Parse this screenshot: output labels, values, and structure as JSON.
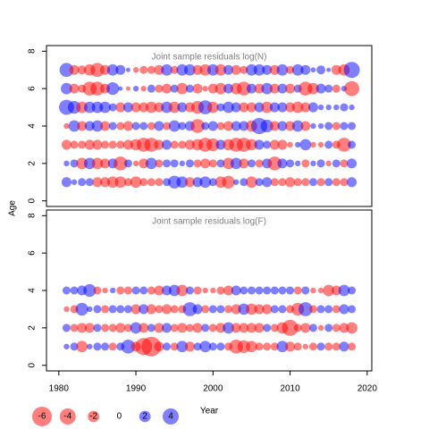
{
  "chart_data": [
    {
      "type": "bubble",
      "title": "Joint sample residuals log(N)",
      "ylabel": "Age",
      "x": [
        1981,
        1982,
        1983,
        1984,
        1985,
        1986,
        1987,
        1988,
        1989,
        1990,
        1991,
        1992,
        1993,
        1994,
        1995,
        1996,
        1997,
        1998,
        1999,
        2000,
        2001,
        2002,
        2003,
        2004,
        2005,
        2006,
        2007,
        2008,
        2009,
        2010,
        2011,
        2012,
        2013,
        2014,
        2015,
        2016,
        2017,
        2018
      ],
      "ages": [
        1,
        2,
        3,
        4,
        5,
        6,
        7
      ],
      "residuals": [
        [
          1.5,
          0.5,
          1,
          1,
          -1.5,
          -1.5,
          -2,
          -2,
          -1,
          -2,
          -1,
          -1,
          -1,
          1,
          2.5,
          2,
          -1.5,
          1.5,
          2,
          1,
          -2,
          -2.5,
          0.5,
          1,
          -2,
          1,
          1.5,
          -1,
          -1,
          -1.5,
          -1,
          -1,
          1,
          -1,
          1,
          -1,
          -1,
          1.5
        ],
        [
          0.5,
          1,
          -2,
          2,
          -2,
          -1.5,
          1.5,
          -3,
          1,
          -0.5,
          -1.5,
          2,
          -1,
          1,
          1,
          0.5,
          1,
          -1,
          -1.5,
          -1,
          1,
          -2,
          2,
          -1.5,
          1,
          -1,
          1.5,
          -3,
          1.5,
          1,
          0.5,
          -1,
          0.5,
          1,
          -0.5,
          1,
          -1,
          1.5
        ],
        [
          -1.5,
          -1,
          -1,
          -1.5,
          -1.5,
          -1,
          -1,
          -1,
          -1.5,
          -2,
          -3,
          -3,
          -1.5,
          1.5,
          -1,
          -1,
          -1.5,
          -2,
          -3,
          -2.5,
          1.5,
          -2,
          -3,
          -3,
          -2,
          1.5,
          1,
          -1.5,
          -1.5,
          -0.5,
          0.5,
          2,
          -0.5,
          -0.5,
          1,
          -1,
          -3,
          1
        ],
        [
          -0.5,
          2,
          -1.5,
          1.5,
          2,
          -1.5,
          1,
          -1,
          -1.5,
          1,
          1,
          -1,
          1.5,
          -1,
          2,
          1,
          1.5,
          -3,
          1,
          1.5,
          -1,
          -1.5,
          1.5,
          1.5,
          -2,
          4,
          2.5,
          -1.5,
          1.5,
          -1.5,
          2,
          -1.5,
          0.5,
          0.5,
          1,
          -1,
          1,
          1
        ],
        [
          3.5,
          2.5,
          -2,
          2,
          2,
          2,
          1,
          -1.5,
          1.5,
          -1.5,
          -1.5,
          -2,
          -1.5,
          2,
          -2,
          1.5,
          -1.5,
          -2.5,
          3,
          -2,
          1,
          2,
          1.5,
          -1.5,
          -1.5,
          1.5,
          -2,
          1.5,
          1.5,
          -1.5,
          -2,
          -1.5,
          1.5,
          0.5,
          0.5,
          0.5,
          1,
          0.5
        ],
        [
          2,
          -1.5,
          -1,
          -3,
          -3,
          -1.5,
          2.5,
          0.3,
          -0.3,
          0.5,
          -0.5,
          1,
          -1,
          -1.5,
          1,
          -2,
          1,
          -1.5,
          -0.5,
          -1.5,
          -2,
          1.5,
          -2,
          -3,
          1.5,
          -1.5,
          2,
          -1.5,
          1.5,
          -1.5,
          1,
          -3,
          -2,
          1.5,
          1,
          -1,
          0.5,
          -3.5
        ],
        [
          3,
          -1.5,
          -1.2,
          -2,
          -3,
          -1.5,
          2,
          1.5,
          0.3,
          -0.5,
          -1,
          -1,
          -1.5,
          2,
          -1,
          2,
          2,
          -1.5,
          -2,
          2,
          -2,
          1.5,
          -1.5,
          -1,
          2,
          2,
          1.5,
          -1.5,
          2,
          -1,
          2,
          1.5,
          0.4,
          1.2,
          0.3,
          -1.5,
          -2,
          4
        ]
      ],
      "xlim": [
        1978.4,
        2020.6
      ],
      "ylim": [
        -0.3,
        8.3
      ],
      "yticks": [
        0,
        2,
        4,
        6,
        8
      ]
    },
    {
      "type": "bubble",
      "title": "Joint sample residuals log(F)",
      "xlabel": "Year",
      "x": [
        1981,
        1982,
        1983,
        1984,
        1985,
        1986,
        1987,
        1988,
        1989,
        1990,
        1991,
        1992,
        1993,
        1994,
        1995,
        1996,
        1997,
        1998,
        1999,
        2000,
        2001,
        2002,
        2003,
        2004,
        2005,
        2006,
        2007,
        2008,
        2009,
        2010,
        2011,
        2012,
        2013,
        2014,
        2015,
        2016,
        2017,
        2018
      ],
      "ages": [
        1,
        2,
        3,
        4
      ],
      "residuals": [
        [
          0.5,
          1,
          -2,
          0.5,
          1,
          1,
          -1,
          1,
          3,
          -1.5,
          -4.5,
          -6,
          -1.5,
          1,
          -1,
          2,
          -1.5,
          1,
          2,
          1,
          1,
          -1,
          -3,
          -2.5,
          -2,
          -1,
          -1,
          -1,
          2,
          -1.5,
          -1,
          -0.5,
          -1,
          1,
          -1,
          -1,
          1.5,
          -1
        ],
        [
          1,
          -1,
          -1.5,
          -1.5,
          1,
          -1,
          -1,
          -1.5,
          -1,
          2,
          -1.5,
          1,
          -1.5,
          1.5,
          -1,
          -1.5,
          -1,
          -1.5,
          1,
          -1,
          -1.5,
          2,
          -1.5,
          -1.5,
          -1.5,
          -1.5,
          1,
          -1,
          -2,
          -4,
          -1,
          -1.5,
          1,
          -0.5,
          1,
          -1,
          -1.5,
          -2
        ],
        [
          -0.5,
          -1,
          2.5,
          0.5,
          1,
          -1,
          1,
          1,
          1,
          -1.5,
          1.5,
          -1.5,
          -1,
          -1.5,
          -1,
          -1,
          3,
          1.5,
          -1,
          1,
          1,
          -1,
          -1.5,
          2,
          -2,
          -1.5,
          -1.5,
          1,
          1,
          -1,
          -2.5,
          3,
          -1,
          1,
          1,
          -1,
          1.5,
          1
        ],
        [
          1,
          1,
          1.5,
          2.5,
          -1,
          -0.5,
          0.5,
          -1,
          -1,
          1,
          1,
          -1,
          -1.5,
          1.5,
          2,
          -2,
          1,
          -1,
          -0.5,
          -0.5,
          -1,
          -1.5,
          1.5,
          1,
          1,
          1,
          1,
          1,
          1,
          1,
          -1,
          1,
          -0.5,
          -0.5,
          -2,
          -1.5,
          2,
          1
        ]
      ],
      "xlim": [
        1978.4,
        2020.6
      ],
      "ylim": [
        -0.3,
        8.3
      ],
      "yticks": [
        0,
        2,
        4,
        6,
        8
      ],
      "xticks": [
        1980,
        1990,
        2000,
        2010,
        2020
      ]
    }
  ],
  "legend": {
    "values": [
      -6,
      -4,
      -2,
      0,
      2,
      4
    ]
  },
  "positive_color": "#0000ff",
  "negative_color": "#ff0000",
  "alpha": 0.5
}
